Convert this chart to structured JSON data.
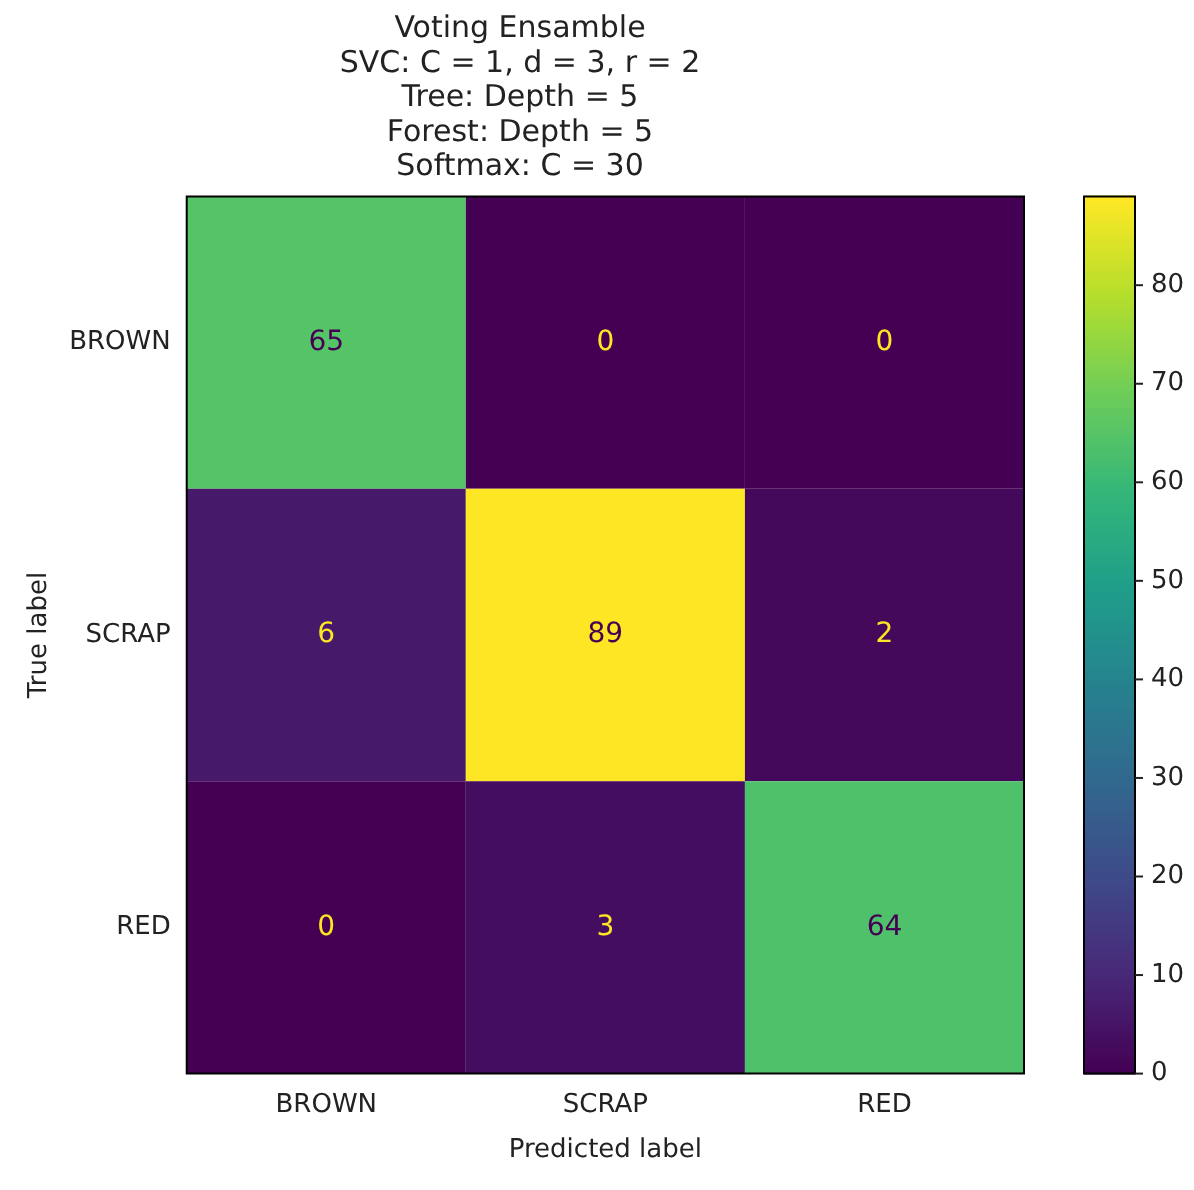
{
  "chart_data": {
    "type": "heatmap",
    "title": "Voting Ensamble\nSVC: C = 1, d = 3, r = 2\nTree: Depth = 5\nForest: Depth = 5\nSoftmax: C = 30",
    "xlabel": "Predicted label",
    "ylabel": "True label",
    "categories": [
      "BROWN",
      "SCRAP",
      "RED"
    ],
    "y_categories": [
      "BROWN",
      "SCRAP",
      "RED"
    ],
    "cells": [
      [
        65,
        0,
        0
      ],
      [
        6,
        89,
        2
      ],
      [
        0,
        3,
        64
      ]
    ],
    "clim": [
      0,
      89
    ],
    "cticks": [
      0,
      10,
      20,
      30,
      40,
      50,
      60,
      70,
      80
    ],
    "data_labels": true,
    "grid": false
  }
}
